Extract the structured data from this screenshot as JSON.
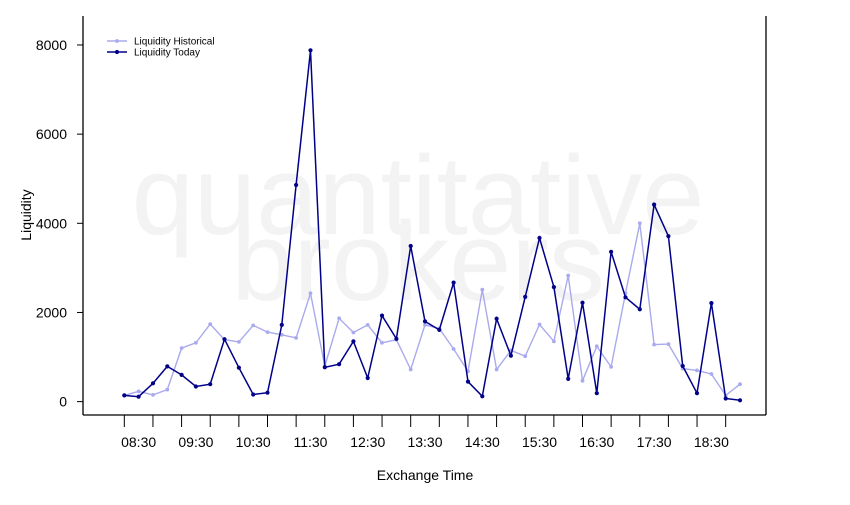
{
  "chart_data": {
    "type": "line",
    "title": "",
    "xlabel": "Exchange Time",
    "ylabel": "Liquidity",
    "watermark": [
      "quantitative",
      "brokers"
    ],
    "ylim": [
      -300,
      8650
    ],
    "yticks": [
      0,
      2000,
      4000,
      6000,
      8000
    ],
    "xticks": [
      "08:30",
      "09:30",
      "10:30",
      "11:30",
      "12:30",
      "13:30",
      "14:30",
      "15:30",
      "16:30",
      "17:30",
      "18:30"
    ],
    "x_start": "08:15",
    "x_end": "18:45",
    "x_step_minutes": 15,
    "grid": false,
    "legend_position": "top-left",
    "colors": {
      "historical": "#aaaaee",
      "today": "#000088"
    },
    "series": [
      {
        "name": "Liquidity Historical",
        "values": [
          140,
          230,
          150,
          270,
          1200,
          1320,
          1740,
          1390,
          1340,
          1710,
          1560,
          1500,
          1430,
          2430,
          800,
          1870,
          1550,
          1720,
          1320,
          1390,
          720,
          1720,
          1640,
          1180,
          680,
          2510,
          720,
          1150,
          1020,
          1730,
          1350,
          2830,
          470,
          1240,
          780,
          2430,
          4000,
          1280,
          1290,
          740,
          700,
          620,
          140,
          390
        ]
      },
      {
        "name": "Liquidity Today",
        "values": [
          140,
          110,
          410,
          790,
          600,
          340,
          390,
          1400,
          760,
          160,
          200,
          1720,
          4860,
          7880,
          770,
          840,
          1350,
          530,
          1930,
          1410,
          3490,
          1800,
          1610,
          2670,
          450,
          120,
          1860,
          1030,
          2350,
          3670,
          2570,
          510,
          2220,
          190,
          3360,
          2340,
          2070,
          4420,
          3710,
          800,
          190,
          2210,
          70,
          30
        ]
      }
    ]
  }
}
